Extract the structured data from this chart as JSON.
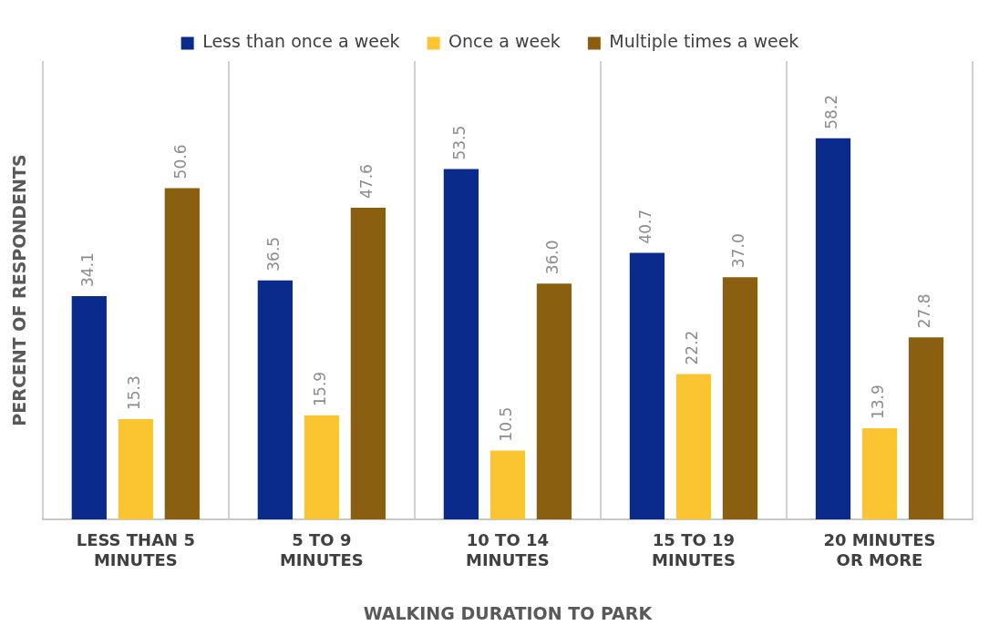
{
  "chart_data": {
    "type": "bar",
    "xlabel": "WALKING DURATION TO PARK",
    "ylabel": "PERCENT OF RESPONDENTS",
    "categories": [
      "LESS THAN 5 MINUTES",
      "5 TO 9 MINUTES",
      "10 TO 14 MINUTES",
      "15 TO 19 MINUTES",
      "20 MINUTES OR MORE"
    ],
    "series": [
      {
        "name": "Less than once a week",
        "color": "#0a2a8c",
        "values": [
          34.1,
          36.5,
          53.5,
          40.7,
          58.2
        ],
        "value_labels": [
          "34.1",
          "36.5",
          "53.5",
          "40.7",
          "58.2"
        ]
      },
      {
        "name": "Once a week",
        "color": "#fbc531",
        "values": [
          15.3,
          15.9,
          10.5,
          22.2,
          13.9
        ],
        "value_labels": [
          "15.3",
          "15.9",
          "10.5",
          "22.2",
          "13.9"
        ]
      },
      {
        "name": "Multiple times a week",
        "color": "#8a6010",
        "values": [
          50.6,
          47.6,
          36.0,
          37.0,
          27.8
        ],
        "value_labels": [
          "50.6",
          "47.6",
          "36.0",
          "37.0",
          "27.8"
        ]
      }
    ],
    "ylim": [
      0,
      70
    ],
    "grid": "x",
    "legend": "top",
    "tick_labels": "x"
  }
}
